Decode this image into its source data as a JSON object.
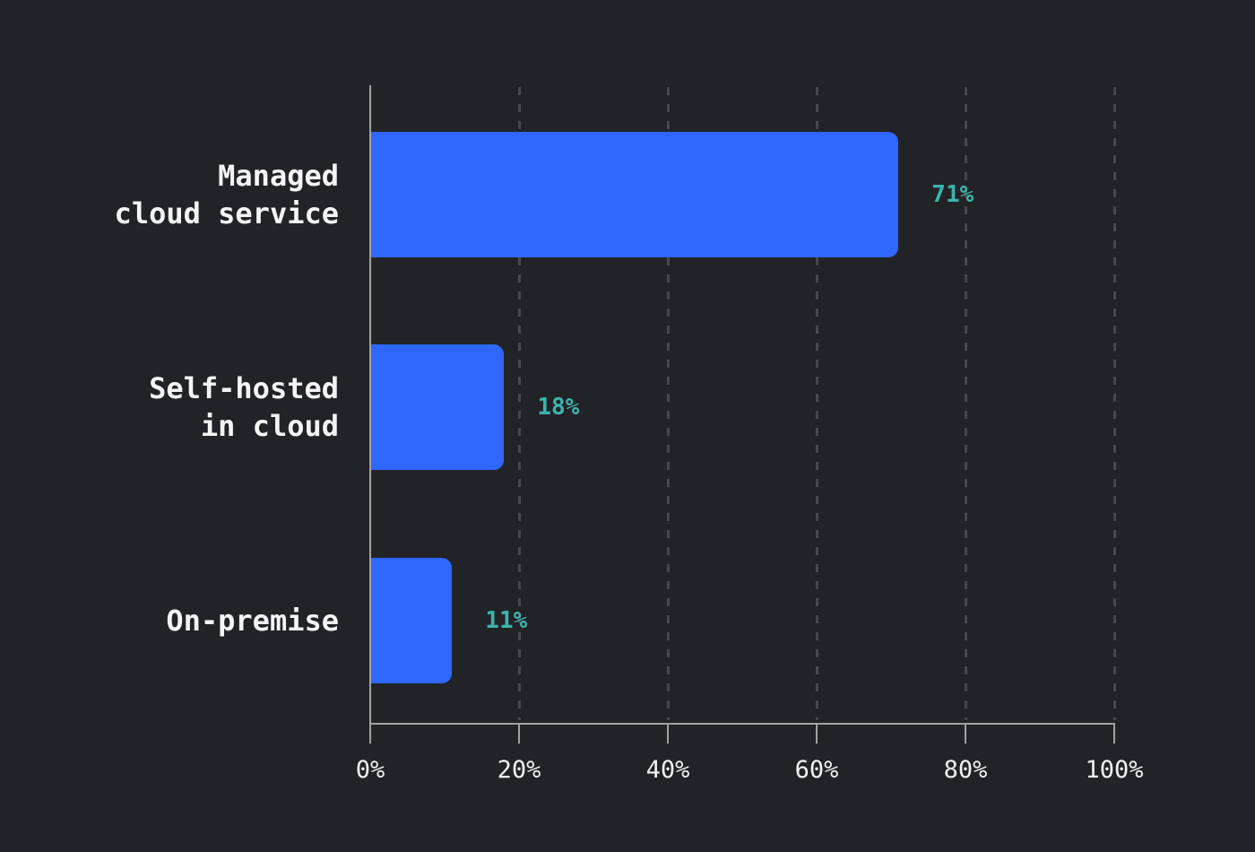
{
  "chart_data": {
    "type": "bar",
    "orientation": "horizontal",
    "title": "",
    "xlabel": "",
    "ylabel": "",
    "categories": [
      "Managed cloud service",
      "Self-hosted in cloud",
      "On-premise"
    ],
    "category_lines": [
      [
        "Managed",
        "cloud service"
      ],
      [
        "Self-hosted",
        "in cloud"
      ],
      [
        "On-premise"
      ]
    ],
    "values": [
      71,
      18,
      11
    ],
    "value_labels": [
      "71%",
      "18%",
      "11%"
    ],
    "x_ticks": [
      0,
      20,
      40,
      60,
      80,
      100
    ],
    "x_tick_labels": [
      "0%",
      "20%",
      "40%",
      "60%",
      "80%",
      "100%"
    ],
    "xlim": [
      0,
      100
    ],
    "grid": "vertical-dashed",
    "legend": "none",
    "colors": {
      "background": "#212327",
      "bar": "#2f66fb",
      "value_label": "#3fb2ac",
      "category_label": "#f5f5f5",
      "tick_label": "#f2f2f2",
      "axis": "#a2a2a2",
      "gridline": "#47484d"
    }
  }
}
